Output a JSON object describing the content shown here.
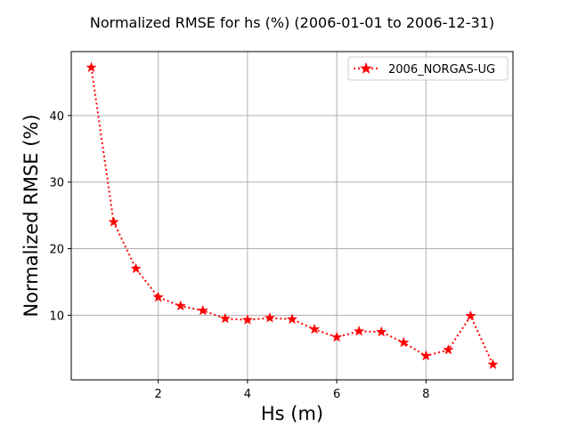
{
  "chart_data": {
    "type": "line",
    "title": "Normalized RMSE for hs (%) (2006-01-01 to 2006-12-31)",
    "xlabel": "Hs (m)",
    "ylabel": "Normalized RMSE (%)",
    "xlim": [
      0.05,
      9.95
    ],
    "ylim": [
      0.3,
      49.6
    ],
    "xticks": [
      2,
      4,
      6,
      8
    ],
    "yticks": [
      10,
      20,
      30,
      40
    ],
    "grid": true,
    "legend_position": "top-right",
    "series": [
      {
        "name": "2006_NORGAS-UG",
        "color": "#ff0000",
        "line_style": "dotted",
        "marker": "star",
        "x": [
          0.5,
          1.0,
          1.5,
          2.0,
          2.5,
          3.0,
          3.5,
          4.0,
          4.5,
          5.0,
          5.5,
          6.0,
          6.5,
          7.0,
          7.5,
          8.0,
          8.5,
          9.0,
          9.5
        ],
        "y": [
          47.2,
          24.0,
          17.0,
          12.7,
          11.4,
          10.7,
          9.5,
          9.3,
          9.6,
          9.4,
          7.9,
          6.7,
          7.6,
          7.5,
          5.9,
          3.9,
          4.8,
          9.9,
          2.6
        ]
      }
    ]
  }
}
